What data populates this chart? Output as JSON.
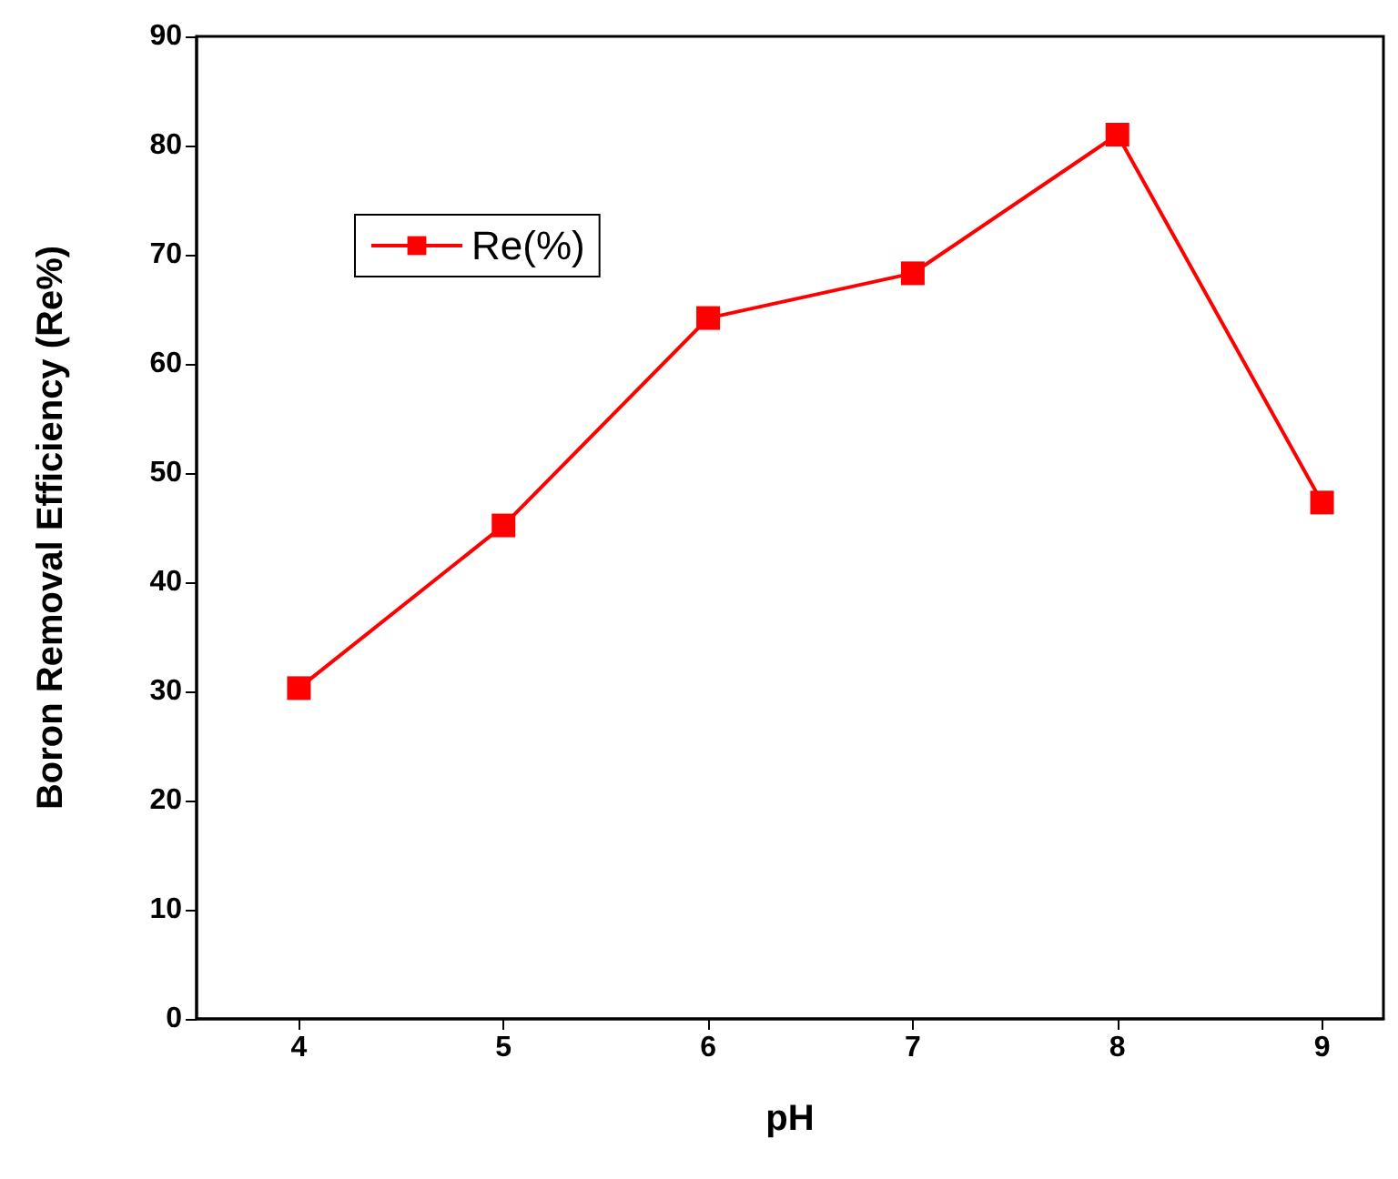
{
  "chart_data": {
    "type": "line",
    "xlabel": "pH",
    "ylabel": "Boron Removal Efficiency (Re%)",
    "x": [
      4,
      5,
      6,
      7,
      8,
      9
    ],
    "series": [
      {
        "name": "Re(%)",
        "color": "#ff0000",
        "values": [
          30.3,
          45.2,
          64.2,
          68.3,
          81,
          47.3
        ]
      }
    ],
    "xlim": [
      3.5,
      9.3
    ],
    "xticks": [
      4,
      5,
      6,
      7,
      8,
      9
    ],
    "ylim": [
      0,
      90
    ],
    "yticks": [
      0,
      10,
      20,
      30,
      40,
      50,
      60,
      70,
      80,
      90
    ],
    "grid": false,
    "legend": "top left",
    "marker": "square",
    "line_style": "solid"
  }
}
